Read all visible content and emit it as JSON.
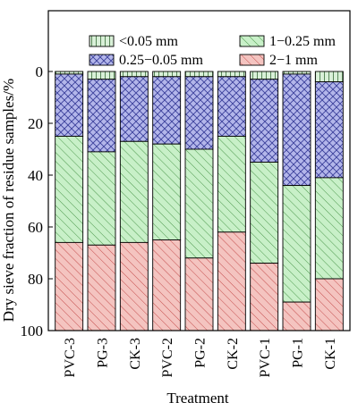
{
  "chart_data": {
    "type": "bar",
    "stacked": true,
    "orientation": "vertical",
    "y_inverted": true,
    "xlabel": "Treatment",
    "ylabel": "Dry sieve fraction of residue samples/%",
    "ylim": [
      0,
      100
    ],
    "yticks": [
      0,
      20,
      40,
      60,
      80,
      100
    ],
    "legend_position": "top",
    "categories": [
      "PVC-3",
      "PG-3",
      "CK-3",
      "PVC-2",
      "PG-2",
      "CK-2",
      "PVC-1",
      "PG-1",
      "CK-1"
    ],
    "series": [
      {
        "name": "<0.05 mm",
        "values": [
          1,
          3,
          2,
          2,
          2,
          2,
          3,
          1,
          4
        ],
        "color": "#d9f0d8",
        "pattern": "vertical-lines"
      },
      {
        "name": "0.25−0.05 mm",
        "values": [
          24,
          28,
          25,
          26,
          28,
          23,
          32,
          43,
          37
        ],
        "color": "#b3b6ea",
        "pattern": "crosshatch"
      },
      {
        "name": "1−0.25 mm",
        "values": [
          41,
          36,
          39,
          37,
          42,
          37,
          39,
          45,
          39
        ],
        "color": "#c8f0c8",
        "pattern": "diagonal"
      },
      {
        "name": "2−1 mm",
        "values": [
          34,
          33,
          34,
          35,
          28,
          38,
          26,
          11,
          20
        ],
        "color": "#f4c4c0",
        "pattern": "diagonal"
      }
    ]
  }
}
